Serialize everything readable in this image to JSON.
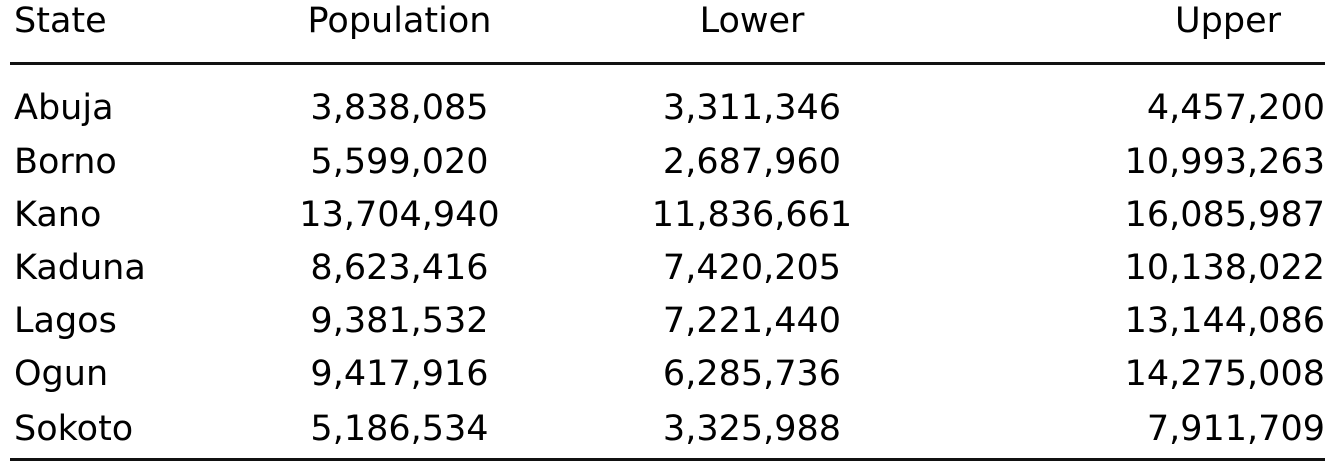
{
  "table": {
    "headers": [
      "State",
      "Population",
      "Lower",
      "Upper"
    ],
    "rows": [
      {
        "state": "Abuja",
        "population": "3,838,085",
        "lower": "3,311,346",
        "upper": "4,457,200"
      },
      {
        "state": "Borno",
        "population": "5,599,020",
        "lower": "2,687,960",
        "upper": "10,993,263"
      },
      {
        "state": "Kano",
        "population": "13,704,940",
        "lower": "11,836,661",
        "upper": "16,085,987"
      },
      {
        "state": "Kaduna",
        "population": "8,623,416",
        "lower": "7,420,205",
        "upper": "10,138,022"
      },
      {
        "state": "Lagos",
        "population": "9,381,532",
        "lower": "7,221,440",
        "upper": "13,144,086"
      },
      {
        "state": "Ogun",
        "population": "9,417,916",
        "lower": "6,285,736",
        "upper": "14,275,008"
      },
      {
        "state": "Sokoto",
        "population": "5,186,534",
        "lower": "3,325,988",
        "upper": "7,911,709"
      }
    ]
  },
  "colors": {
    "text": "#000000",
    "rule": "#111111",
    "background": "#ffffff"
  }
}
